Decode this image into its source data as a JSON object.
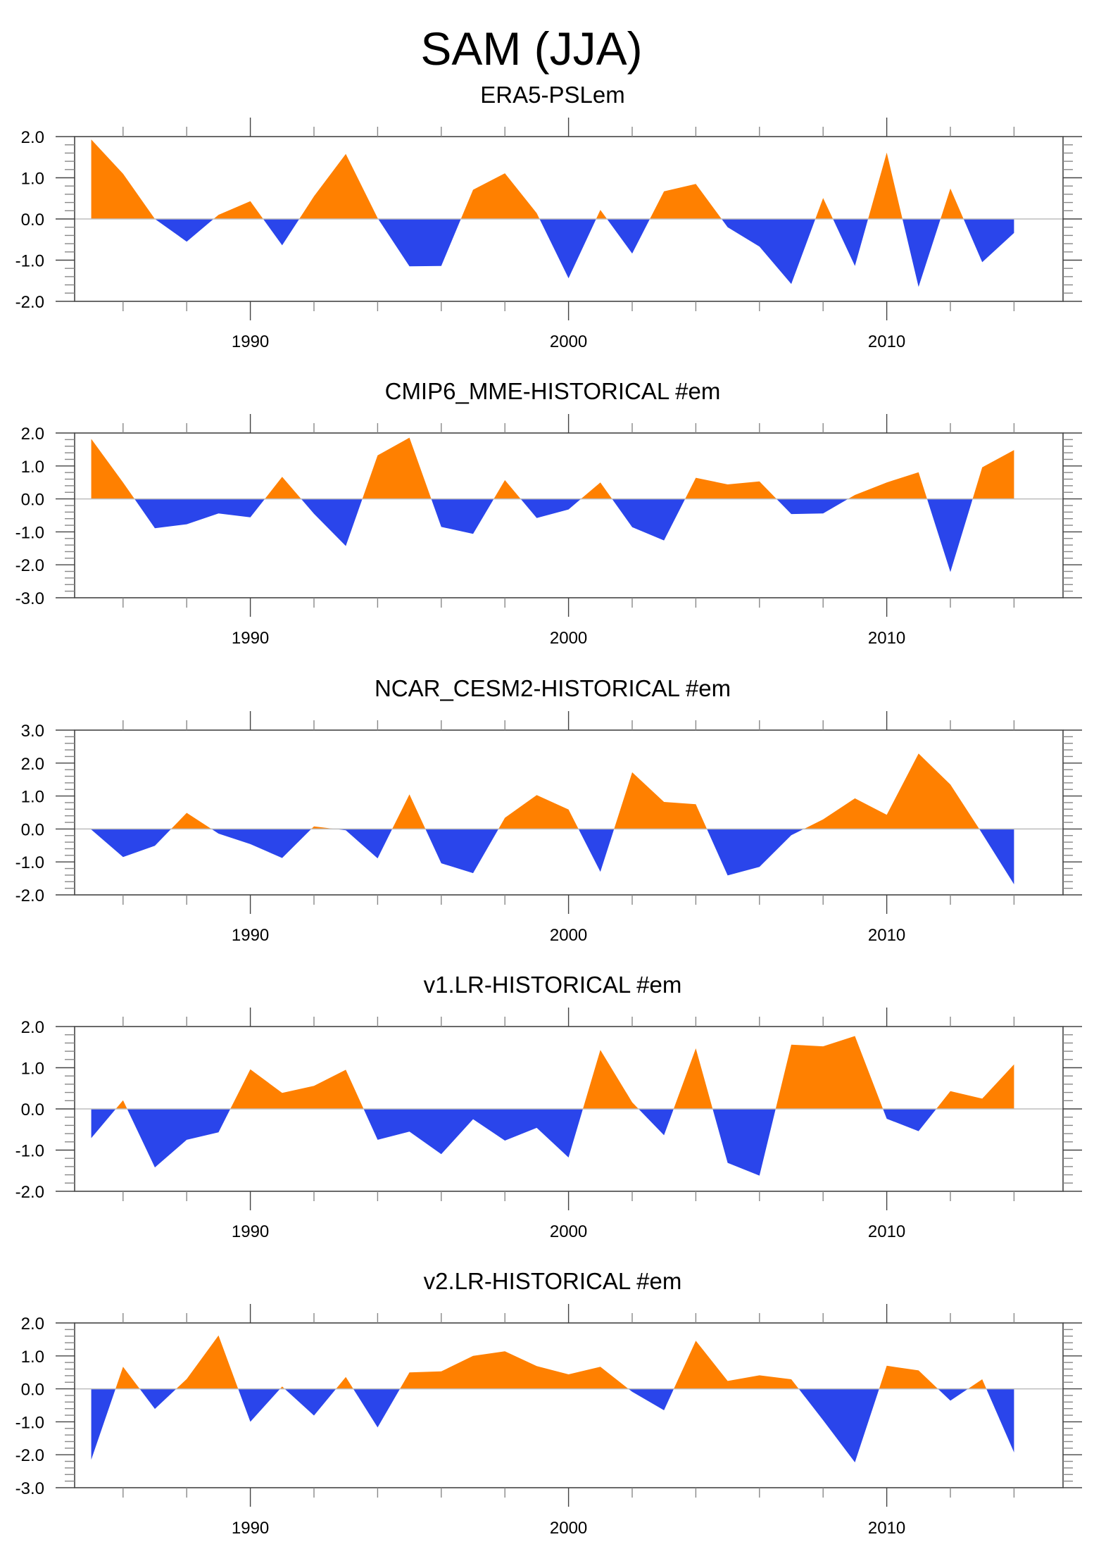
{
  "chart_data": {
    "type": "area",
    "title": "SAM (JJA)",
    "x": [
      1985,
      1986,
      1987,
      1988,
      1989,
      1990,
      1991,
      1992,
      1993,
      1994,
      1995,
      1996,
      1997,
      1998,
      1999,
      2000,
      2001,
      2002,
      2003,
      2004,
      2005,
      2006,
      2007,
      2008,
      2009,
      2010,
      2011,
      2012,
      2013,
      2014
    ],
    "xlim": [
      1982.5,
      2016.5
    ],
    "xticks_major": [
      1990,
      2000,
      2010
    ],
    "xtick_labels": [
      "1990",
      "2000",
      "2010"
    ],
    "xticks_minor_step": 2,
    "positive_color": "#FF8000",
    "negative_color": "#2A45EB",
    "reference_line": 0,
    "grid": false,
    "panels": [
      {
        "title": "ERA5-PSLem",
        "ylim": [
          -2.0,
          2.0
        ],
        "yticks": [
          2.0,
          1.0,
          0.0,
          -1.0,
          -2.0
        ],
        "ytick_labels": [
          "2.0",
          "1.0",
          "0.0",
          "-1.0",
          "-2.0"
        ],
        "values": [
          1.93,
          1.1,
          0.0,
          -0.55,
          0.1,
          0.43,
          -0.64,
          0.55,
          1.58,
          0.02,
          -1.15,
          -1.14,
          0.71,
          1.11,
          0.14,
          -1.44,
          0.22,
          -0.84,
          0.67,
          0.85,
          -0.2,
          -0.67,
          -1.58,
          0.51,
          -1.14,
          1.61,
          -1.65,
          0.74,
          -1.05,
          -0.34
        ]
      },
      {
        "title": "CMIP6_MME-HISTORICAL  #em",
        "ylim": [
          -3.0,
          2.0
        ],
        "yticks": [
          2.0,
          1.0,
          0.0,
          -1.0,
          -2.0,
          -3.0
        ],
        "ytick_labels": [
          "2.0",
          "1.0",
          "0.0",
          "-1.0",
          "-2.0",
          "-3.0"
        ],
        "values": [
          1.82,
          0.5,
          -0.89,
          -0.77,
          -0.44,
          -0.56,
          0.67,
          -0.45,
          -1.43,
          1.32,
          1.86,
          -0.85,
          -1.06,
          0.57,
          -0.58,
          -0.32,
          0.5,
          -0.86,
          -1.26,
          0.64,
          0.44,
          0.53,
          -0.46,
          -0.44,
          0.12,
          0.5,
          0.81,
          -2.22,
          0.96,
          1.48
        ]
      },
      {
        "title": "NCAR_CESM2-HISTORICAL  #em",
        "ylim": [
          -2.0,
          3.0
        ],
        "yticks": [
          3.0,
          2.0,
          1.0,
          0.0,
          -1.0,
          -2.0
        ],
        "ytick_labels": [
          "3.0",
          "2.0",
          "1.0",
          "0.0",
          "-1.0",
          "-2.0"
        ],
        "values": [
          -0.02,
          -0.85,
          -0.51,
          0.49,
          -0.14,
          -0.46,
          -0.88,
          0.08,
          -0.04,
          -0.89,
          1.05,
          -1.04,
          -1.34,
          0.34,
          1.03,
          0.59,
          -1.3,
          1.72,
          0.82,
          0.75,
          -1.41,
          -1.15,
          -0.19,
          0.29,
          0.93,
          0.43,
          2.29,
          1.35,
          -0.14,
          -1.68
        ]
      },
      {
        "title": "v1.LR-HISTORICAL  #em",
        "ylim": [
          -2.0,
          2.0
        ],
        "yticks": [
          2.0,
          1.0,
          0.0,
          -1.0,
          -2.0
        ],
        "ytick_labels": [
          "2.0",
          "1.0",
          "0.0",
          "-1.0",
          "-2.0"
        ],
        "values": [
          -0.71,
          0.21,
          -1.42,
          -0.75,
          -0.57,
          0.96,
          0.39,
          0.56,
          0.95,
          -0.75,
          -0.55,
          -1.1,
          -0.25,
          -0.77,
          -0.46,
          -1.18,
          1.43,
          0.16,
          -0.64,
          1.47,
          -1.31,
          -1.62,
          1.56,
          1.52,
          1.77,
          -0.24,
          -0.54,
          0.43,
          0.25,
          1.08
        ]
      },
      {
        "title": "v2.LR-HISTORICAL  #em",
        "ylim": [
          -3.0,
          2.0
        ],
        "yticks": [
          2.0,
          1.0,
          0.0,
          -1.0,
          -2.0,
          -3.0
        ],
        "ytick_labels": [
          "2.0",
          "1.0",
          "0.0",
          "-1.0",
          "-2.0",
          "-3.0"
        ],
        "values": [
          -2.15,
          0.67,
          -0.61,
          0.3,
          1.62,
          -1.0,
          0.07,
          -0.81,
          0.36,
          -1.17,
          0.5,
          0.53,
          1.0,
          1.14,
          0.69,
          0.44,
          0.67,
          -0.09,
          -0.65,
          1.46,
          0.24,
          0.41,
          0.29,
          -0.95,
          -2.23,
          0.7,
          0.56,
          -0.36,
          0.29,
          -1.93
        ]
      }
    ]
  }
}
